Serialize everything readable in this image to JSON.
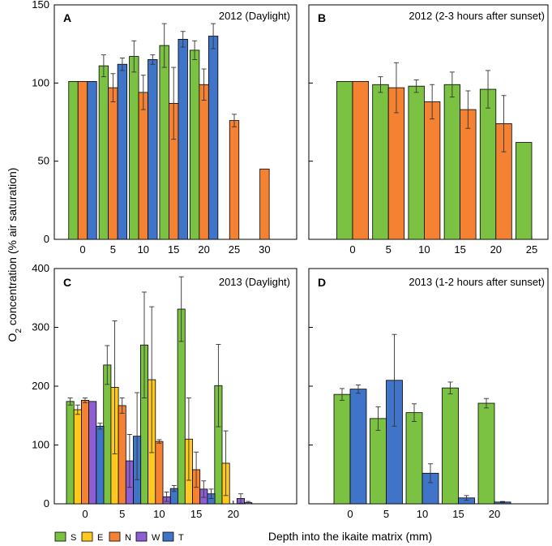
{
  "figure": {
    "ylabel_main": "O",
    "ylabel_sub": "2",
    "ylabel_rest": " concentration (% air saturation)",
    "xlabel": "Depth into the ikaite matrix (mm)"
  },
  "legend": [
    {
      "key": "S",
      "label": "S",
      "color": "#7cc242"
    },
    {
      "key": "E",
      "label": "E",
      "color": "#ffc81e"
    },
    {
      "key": "N",
      "label": "N",
      "color": "#f58233"
    },
    {
      "key": "W",
      "label": "W",
      "color": "#8d5fd3"
    },
    {
      "key": "T",
      "label": "T",
      "color": "#3f74c9"
    }
  ],
  "chart_data": [
    {
      "type": "bar",
      "panel": "A",
      "title": "2012  (Daylight)",
      "categories": [
        "0",
        "5",
        "10",
        "15",
        "20",
        "25",
        "30"
      ],
      "ylim": [
        0,
        150
      ],
      "yticks": [
        "0",
        "50",
        "100",
        "150"
      ],
      "show_y_tick_labels": true,
      "series": [
        {
          "name": "S",
          "values": [
            101,
            111,
            117,
            124,
            121,
            null,
            null
          ],
          "errors": [
            0,
            7,
            10,
            14,
            6,
            null,
            null
          ]
        },
        {
          "name": "N",
          "values": [
            101,
            97,
            94,
            87,
            99,
            76,
            45
          ],
          "errors": [
            0,
            9,
            11,
            23,
            10,
            4,
            0
          ]
        },
        {
          "name": "T",
          "values": [
            101,
            112,
            115,
            128,
            130,
            null,
            null
          ],
          "errors": [
            0,
            4,
            3,
            5,
            8,
            null,
            null
          ]
        }
      ]
    },
    {
      "type": "bar",
      "panel": "B",
      "title": "2012 (2-3 hours after sunset)",
      "categories": [
        "0",
        "5",
        "10",
        "15",
        "20",
        "25"
      ],
      "ylim": [
        0,
        150
      ],
      "yticks": [
        "0",
        "50",
        "100",
        "150"
      ],
      "show_y_tick_labels": false,
      "series": [
        {
          "name": "S",
          "values": [
            101,
            99,
            98,
            99,
            96,
            62
          ],
          "errors": [
            0,
            5,
            4,
            8,
            12,
            0
          ]
        },
        {
          "name": "N",
          "values": [
            101,
            97,
            88,
            83,
            74,
            null
          ],
          "errors": [
            0,
            16,
            11,
            12,
            18,
            null
          ]
        }
      ]
    },
    {
      "type": "bar",
      "panel": "C",
      "title": "2013 (Daylight)",
      "categories": [
        "0",
        "5",
        "10",
        "15",
        "20"
      ],
      "ylim": [
        0,
        400
      ],
      "yticks": [
        "0",
        "100",
        "200",
        "300",
        "400"
      ],
      "show_y_tick_labels": true,
      "series": [
        {
          "name": "S",
          "values": [
            174,
            236,
            270,
            331,
            201
          ],
          "errors": [
            6,
            33,
            90,
            55,
            70
          ]
        },
        {
          "name": "E",
          "values": [
            160,
            198,
            211,
            110,
            69
          ],
          "errors": [
            8,
            113,
            124,
            70,
            55
          ]
        },
        {
          "name": "N",
          "values": [
            176,
            167,
            106,
            58,
            0
          ],
          "errors": [
            4,
            13,
            3,
            30,
            0
          ]
        },
        {
          "name": "W",
          "values": [
            174,
            73,
            12,
            25,
            9
          ],
          "errors": [
            0,
            45,
            8,
            14,
            8
          ]
        },
        {
          "name": "T",
          "values": [
            132,
            115,
            26,
            17,
            2
          ],
          "errors": [
            5,
            74,
            5,
            8,
            2
          ]
        }
      ]
    },
    {
      "type": "bar",
      "panel": "D",
      "title": "2013 (1-2 hours after sunset)",
      "categories": [
        "0",
        "5",
        "10",
        "15",
        "20"
      ],
      "ylim": [
        0,
        400
      ],
      "yticks": [
        "0",
        "100",
        "200",
        "300",
        "400"
      ],
      "show_y_tick_labels": false,
      "series": [
        {
          "name": "S",
          "values": [
            186,
            145,
            155,
            197,
            171
          ],
          "errors": [
            10,
            20,
            15,
            10,
            8
          ]
        },
        {
          "name": "T",
          "values": [
            195,
            210,
            52,
            10,
            3
          ],
          "errors": [
            7,
            78,
            16,
            4,
            1
          ]
        }
      ]
    }
  ]
}
